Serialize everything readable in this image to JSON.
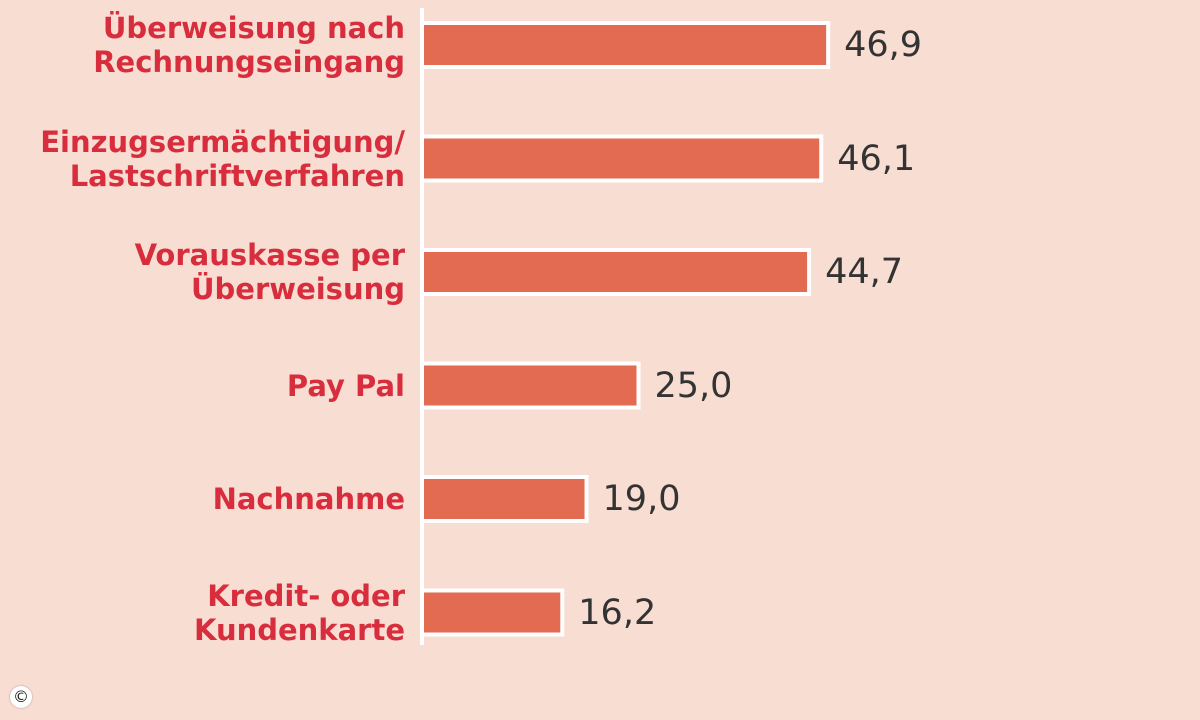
{
  "chart_data": {
    "type": "bar",
    "orientation": "horizontal",
    "categories": [
      "Überweisung nach\nRechnungseingang",
      "Einzugsermächtigung/\nLastschriftverfahren",
      "Vorauskasse per\nÜberweisung",
      "Pay Pal",
      "Nachnahme",
      "Kredit- oder\nKundenkarte"
    ],
    "values": [
      46.9,
      46.1,
      44.7,
      25.0,
      19.0,
      16.2
    ],
    "data_labels": [
      "46,9",
      "46,1",
      "44,7",
      "25,0",
      "19,0",
      "16,2"
    ],
    "title": "",
    "xlabel": "",
    "ylabel": "",
    "xlim": [
      0,
      50
    ],
    "grid": false,
    "legend": "none"
  },
  "colors": {
    "background": "#f8ddd3",
    "bar_fill": "#e26b52",
    "bar_outline": "#ffffff",
    "category_label": "#d72d3c",
    "value_label": "#333333",
    "axis_line": "#ffffff"
  },
  "copyright_symbol": "©"
}
